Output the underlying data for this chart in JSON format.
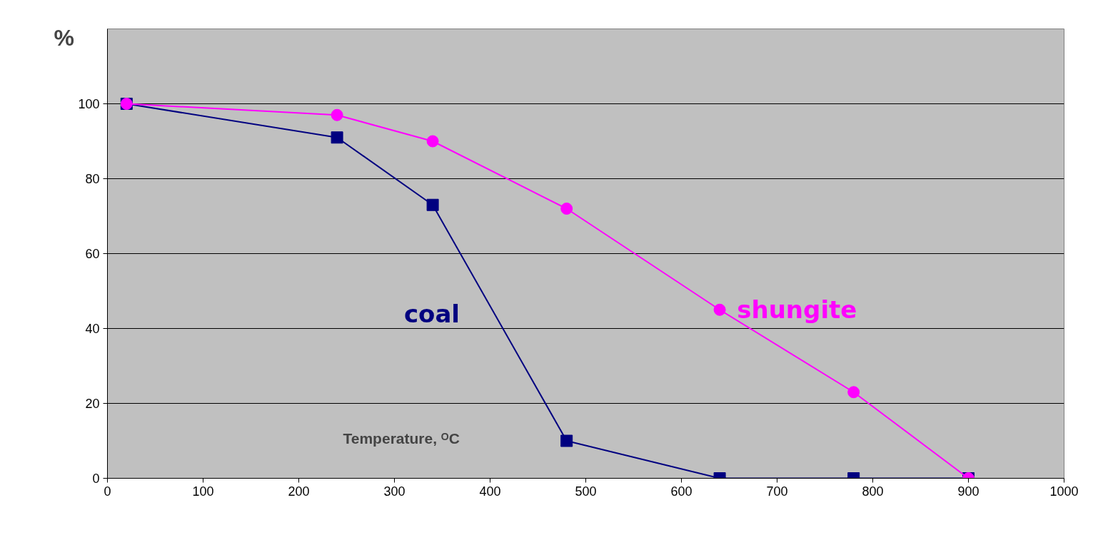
{
  "chart_data": {
    "type": "line",
    "xlabel": "Temperature, ᴼC",
    "ylabel": "%",
    "x": [
      20,
      240,
      340,
      480,
      640,
      780,
      900
    ],
    "series": [
      {
        "name": "coal",
        "color": "#000080",
        "marker": "square",
        "values": [
          100,
          91,
          73,
          10,
          0,
          0,
          0
        ]
      },
      {
        "name": "shungite",
        "color": "#ff00ff",
        "marker": "circle",
        "values": [
          100,
          97,
          90,
          72,
          45,
          23,
          0
        ]
      }
    ],
    "xlim": [
      0,
      1000
    ],
    "xticks": [
      0,
      100,
      200,
      300,
      400,
      500,
      600,
      700,
      800,
      900,
      1000
    ],
    "ylim": [
      0,
      120
    ],
    "yticks": [
      0,
      20,
      40,
      60,
      80,
      100
    ],
    "grid": "y"
  }
}
